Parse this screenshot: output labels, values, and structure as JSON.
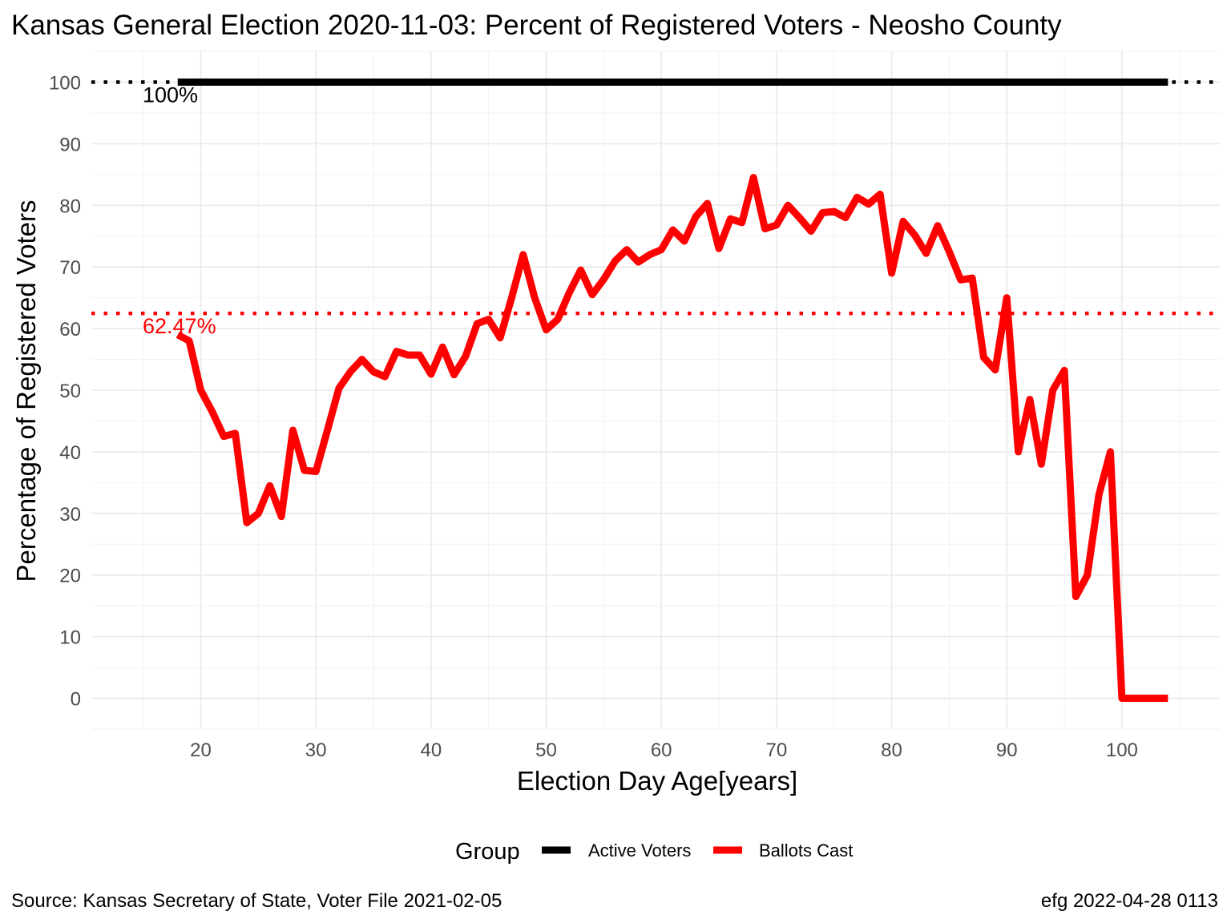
{
  "chart_data": {
    "type": "line",
    "title": "Kansas General Election 2020-11-03:  Percent of Registered Voters - Neosho County",
    "xlabel": "Election Day Age[years]",
    "ylabel": "Percentage of Registered Voters",
    "xlim": [
      10.5,
      108.5
    ],
    "ylim": [
      -5,
      105
    ],
    "xticks": [
      20,
      30,
      40,
      50,
      60,
      70,
      80,
      90,
      100
    ],
    "yticks": [
      0,
      10,
      20,
      30,
      40,
      50,
      60,
      70,
      80,
      90,
      100
    ],
    "x_tick_labels": [
      "20",
      "30",
      "40",
      "50",
      "60",
      "70",
      "80",
      "90",
      "100"
    ],
    "y_tick_labels": [
      "0",
      "10",
      "20",
      "30",
      "40",
      "50",
      "60",
      "70",
      "80",
      "90",
      "100"
    ],
    "grid": true,
    "legend_position": "bottom",
    "legend_title": "Group",
    "series": [
      {
        "name": "Active Voters",
        "color": "#000000",
        "x": [
          18,
          104
        ],
        "y": [
          100,
          100
        ]
      },
      {
        "name": "Ballots Cast",
        "color": "#ff0000",
        "x": [
          18,
          19,
          20,
          21,
          22,
          23,
          24,
          25,
          26,
          27,
          28,
          29,
          30,
          31,
          32,
          33,
          34,
          35,
          36,
          37,
          38,
          39,
          40,
          41,
          42,
          43,
          44,
          45,
          46,
          47,
          48,
          49,
          50,
          51,
          52,
          53,
          54,
          55,
          56,
          57,
          58,
          59,
          60,
          61,
          62,
          63,
          64,
          65,
          66,
          67,
          68,
          69,
          70,
          71,
          72,
          73,
          74,
          75,
          76,
          77,
          78,
          79,
          80,
          81,
          82,
          83,
          84,
          85,
          86,
          87,
          88,
          89,
          90,
          91,
          92,
          93,
          94,
          95,
          96,
          97,
          98,
          99,
          100,
          101,
          102,
          103,
          104
        ],
        "y": [
          59,
          58,
          50,
          46.5,
          42.5,
          43,
          28.5,
          30,
          34.5,
          29.5,
          43.5,
          37,
          36.8,
          43.5,
          50.3,
          53,
          55,
          53,
          52.2,
          56.3,
          55.7,
          55.7,
          52.6,
          57,
          52.5,
          55.5,
          60.8,
          61.5,
          58.5,
          65,
          72,
          65,
          59.8,
          61.5,
          65.8,
          69.5,
          65.5,
          68,
          71,
          72.8,
          70.8,
          72,
          72.8,
          76,
          74.2,
          78.2,
          80.3,
          73,
          77.8,
          77.2,
          84.5,
          76.2,
          76.8,
          80,
          78,
          75.8,
          78.8,
          79,
          78,
          81.3,
          80.2,
          81.8,
          69,
          77.4,
          75.2,
          72.2,
          76.7,
          72.5,
          67.9,
          68.2,
          55.3,
          53.3,
          65,
          40,
          48.5,
          38,
          50,
          53.2,
          16.5,
          20,
          33,
          40,
          0,
          0,
          0,
          0,
          0
        ]
      }
    ],
    "reference_lines": [
      {
        "y": 100,
        "color": "#000000",
        "style": "dotted",
        "label": "100%"
      },
      {
        "y": 62.47,
        "color": "#ff0000",
        "style": "dotted",
        "label": "62.47%"
      }
    ],
    "caption_left": "Source:  Kansas Secretary of State, Voter File  2021-02-05",
    "caption_right": "efg 2022-04-28 0113"
  }
}
